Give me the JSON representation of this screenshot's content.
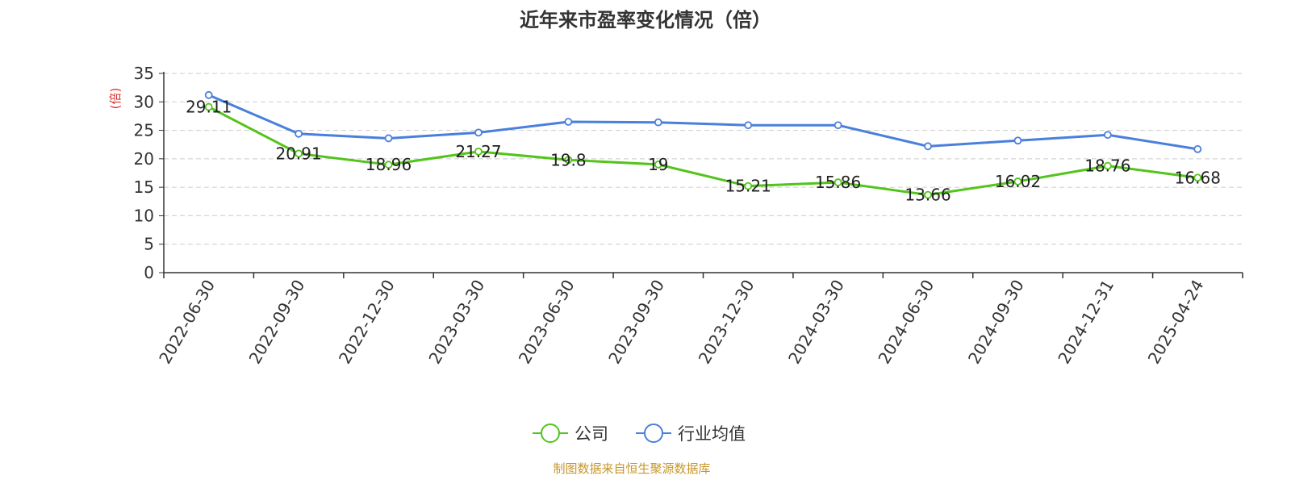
{
  "chart_data": {
    "type": "line",
    "title": "近年来市盈率变化情况（倍）",
    "ylabel": "(倍)",
    "ylim": [
      0,
      35
    ],
    "yticks": [
      0,
      5,
      10,
      15,
      20,
      25,
      30,
      35
    ],
    "grid": true,
    "legend_position": "bottom",
    "categories": [
      "2022-06-30",
      "2022-09-30",
      "2022-12-30",
      "2023-03-30",
      "2023-06-30",
      "2023-09-30",
      "2023-12-30",
      "2024-03-30",
      "2024-06-30",
      "2024-09-30",
      "2024-12-31",
      "2025-04-24"
    ],
    "series": [
      {
        "name": "公司",
        "color": "#52c41a",
        "values": [
          29.11,
          20.91,
          18.96,
          21.27,
          19.8,
          19,
          15.21,
          15.86,
          13.66,
          16.02,
          18.76,
          16.68
        ],
        "labels": [
          "29.11",
          "20.91",
          "18.96",
          "21.27",
          "19.8",
          "19",
          "15.21",
          "15.86",
          "13.66",
          "16.02",
          "18.76",
          "16.68"
        ]
      },
      {
        "name": "行业均值",
        "color": "#4a7fdc",
        "values": [
          31.2,
          24.4,
          23.6,
          24.6,
          26.5,
          26.4,
          25.9,
          25.9,
          22.2,
          23.2,
          24.2,
          21.7
        ]
      }
    ],
    "source": "制图数据来自恒生聚源数据库",
    "ylabel_color": "#e03030",
    "source_color": "#c8962a"
  }
}
